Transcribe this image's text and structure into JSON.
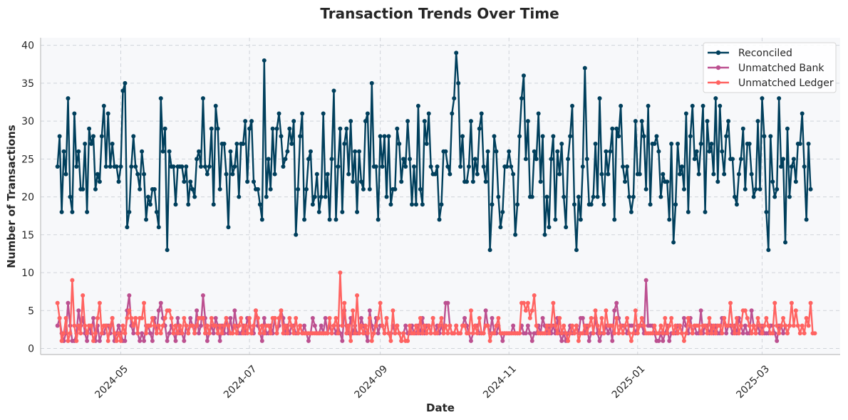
{
  "chart_data": {
    "type": "line",
    "title": "Transaction Trends Over Time",
    "xlabel": "Date",
    "ylabel": "Number of Transactions",
    "x_range": [
      "2024-03-24",
      "2025-04-07"
    ],
    "x_ticks": [
      {
        "date": "2024-05-01",
        "label": "2024-05"
      },
      {
        "date": "2024-07-01",
        "label": "2024-07"
      },
      {
        "date": "2024-09-01",
        "label": "2024-09"
      },
      {
        "date": "2024-11-01",
        "label": "2024-11"
      },
      {
        "date": "2025-01-01",
        "label": "2025-01"
      },
      {
        "date": "2025-03-01",
        "label": "2025-03"
      }
    ],
    "ylim": [
      -0.8,
      41
    ],
    "y_ticks": [
      0,
      5,
      10,
      15,
      20,
      25,
      30,
      35,
      40
    ],
    "grid": true,
    "legend_position": "top-right",
    "x_start": "2024-04-01",
    "x_end": "2025-03-31",
    "x_step": "1 day",
    "series": [
      {
        "name": "Reconciled",
        "color": "#003f5c",
        "values": [
          24,
          28,
          18,
          26,
          23,
          33,
          20,
          18,
          31,
          24,
          26,
          21,
          21,
          27,
          18,
          29,
          27,
          28,
          21,
          23,
          22,
          28,
          32,
          24,
          31,
          24,
          27,
          24,
          24,
          22,
          24,
          34,
          35,
          16,
          18,
          24,
          28,
          24,
          23,
          21,
          26,
          23,
          17,
          20,
          19,
          21,
          21,
          18,
          16,
          33,
          26,
          29,
          13,
          26,
          24,
          24,
          19,
          24,
          24,
          24,
          22,
          24,
          19,
          22,
          21,
          20,
          25,
          26,
          24,
          33,
          24,
          23,
          24,
          29,
          19,
          32,
          29,
          21,
          27,
          27,
          23,
          16,
          26,
          23,
          24,
          27,
          20,
          27,
          27,
          30,
          22,
          29,
          30,
          22,
          21,
          21,
          19,
          17,
          38,
          20,
          25,
          21,
          29,
          23,
          29,
          31,
          28,
          24,
          25,
          26,
          29,
          27,
          30,
          15,
          21,
          28,
          31,
          17,
          21,
          25,
          26,
          19,
          20,
          23,
          18,
          20,
          31,
          20,
          23,
          17,
          25,
          34,
          17,
          24,
          29,
          18,
          27,
          29,
          23,
          30,
          22,
          26,
          18,
          26,
          22,
          21,
          30,
          31,
          21,
          35,
          24,
          24,
          17,
          28,
          24,
          28,
          20,
          28,
          19,
          21,
          21,
          29,
          27,
          22,
          25,
          24,
          30,
          25,
          19,
          24,
          19,
          32,
          21,
          19,
          30,
          27,
          31,
          24,
          23,
          23,
          24,
          17,
          19,
          26,
          26,
          24,
          23,
          31,
          33,
          39,
          35,
          24,
          28,
          22,
          22,
          24,
          30,
          22,
          25,
          23,
          29,
          31,
          24,
          22,
          26,
          13,
          19,
          28,
          26,
          20,
          16,
          18,
          24,
          24,
          26,
          24,
          23,
          15,
          19,
          28,
          33,
          36,
          25,
          30,
          20,
          20,
          26,
          25,
          31,
          22,
          28,
          15,
          20,
          16,
          25,
          28,
          17,
          26,
          23,
          27,
          20,
          16,
          25,
          28,
          32,
          19,
          13,
          20,
          17,
          24,
          37,
          25,
          19,
          19,
          20,
          27,
          20,
          33,
          23,
          19,
          26,
          23,
          26,
          29,
          17,
          29,
          28,
          32,
          24,
          22,
          24,
          20,
          18,
          20,
          30,
          23,
          23,
          30,
          28,
          21,
          32,
          19,
          27,
          27,
          28,
          26,
          20,
          23,
          22,
          22,
          17,
          27,
          14,
          19,
          27,
          23,
          24,
          21,
          31,
          18,
          28,
          32,
          25,
          26,
          23,
          27,
          32,
          18,
          30,
          26,
          27,
          23,
          33,
          22,
          32,
          26,
          23,
          28,
          30,
          25,
          25,
          20,
          19,
          23,
          25,
          29,
          21,
          27,
          27,
          23,
          20,
          21,
          30,
          21,
          33,
          28,
          18,
          13,
          28,
          22,
          20,
          21,
          33,
          24,
          25,
          14,
          29,
          20,
          24,
          25,
          22,
          27,
          27,
          31,
          24,
          17,
          27,
          21
        ]
      },
      {
        "name": "Unmatched Bank",
        "color": "#bc5090",
        "values": [
          3,
          4,
          2,
          1,
          2,
          6,
          3,
          1,
          1,
          2,
          5,
          3,
          4,
          2,
          1,
          3,
          2,
          4,
          1,
          3,
          1,
          2,
          2,
          3,
          3,
          2,
          4,
          1,
          2,
          3,
          2,
          1,
          1,
          5,
          7,
          3,
          2,
          4,
          2,
          1,
          2,
          1,
          3,
          3,
          2,
          1,
          4,
          2,
          5,
          6,
          4,
          3,
          1,
          2,
          3,
          2,
          1,
          4,
          2,
          2,
          1,
          3,
          2,
          4,
          3,
          2,
          5,
          2,
          3,
          7,
          4,
          1,
          2,
          3,
          2,
          4,
          3,
          1,
          3,
          2,
          4,
          2,
          4,
          2,
          5,
          3,
          2,
          2,
          3,
          2,
          4,
          3,
          2,
          2,
          5,
          3,
          2,
          1,
          4,
          2,
          2,
          3,
          2,
          4,
          2,
          3,
          5,
          4,
          2,
          3,
          2,
          3,
          3,
          2,
          2,
          3,
          2,
          3,
          2,
          1,
          2,
          4,
          3,
          2,
          2,
          3,
          2,
          4,
          2,
          3,
          2,
          3,
          2,
          3,
          2,
          1,
          5,
          3,
          2,
          4,
          2,
          3,
          2,
          2,
          4,
          3,
          2,
          1,
          5,
          3,
          2,
          4,
          2,
          3,
          3,
          2,
          4,
          2,
          2,
          3,
          2,
          3,
          2,
          1,
          2,
          3,
          2,
          2,
          3,
          2,
          2,
          3,
          2,
          4,
          2,
          3,
          3,
          2,
          4,
          2,
          3,
          2,
          3,
          2,
          6,
          6,
          3,
          2,
          2,
          3,
          2,
          2,
          3,
          4,
          3,
          2,
          1,
          2,
          3,
          3,
          2,
          2,
          2,
          5,
          3,
          2,
          4,
          2,
          2,
          3,
          2,
          1,
          2,
          2,
          2,
          2,
          3,
          2,
          2,
          2,
          3,
          2,
          2,
          3,
          2,
          1,
          2,
          2,
          3,
          2,
          4,
          3,
          2,
          3,
          2,
          3,
          2,
          4,
          2,
          1,
          2,
          1,
          2,
          3,
          2,
          2,
          3,
          2,
          4,
          4,
          2,
          3,
          1,
          2,
          2,
          4,
          2,
          1,
          2,
          2,
          3,
          2,
          3,
          1,
          5,
          6,
          4,
          3,
          3,
          3,
          2,
          3,
          3,
          3,
          2,
          3,
          3,
          3,
          2,
          9,
          3,
          3,
          3,
          2,
          1,
          1,
          2,
          1,
          2,
          3,
          1,
          2,
          2,
          2,
          3,
          3,
          2,
          4,
          3,
          2,
          4,
          2,
          3,
          2,
          2,
          5,
          2,
          3,
          3,
          2,
          3,
          2,
          3,
          2,
          2,
          4,
          4,
          2,
          3,
          3,
          2,
          3,
          2,
          4,
          3,
          2,
          3,
          2,
          2,
          5,
          3,
          2,
          3,
          2,
          3,
          2,
          2,
          2,
          3,
          3,
          2,
          1,
          3,
          3,
          2,
          3,
          2,
          3
        ]
      },
      {
        "name": "Unmatched Ledger",
        "color": "#ff6361",
        "values": [
          6,
          4,
          1,
          2,
          4,
          1,
          2,
          9,
          3,
          1,
          3,
          2,
          7,
          3,
          2,
          3,
          3,
          1,
          2,
          4,
          6,
          2,
          3,
          3,
          1,
          3,
          4,
          2,
          1,
          2,
          1,
          3,
          2,
          4,
          5,
          4,
          3,
          4,
          2,
          4,
          4,
          6,
          2,
          3,
          3,
          4,
          3,
          2,
          3,
          2,
          3,
          4,
          5,
          5,
          4,
          2,
          3,
          2,
          3,
          2,
          4,
          3,
          2,
          3,
          3,
          2,
          3,
          4,
          4,
          4,
          2,
          3,
          2,
          4,
          3,
          3,
          2,
          3,
          2,
          3,
          4,
          3,
          2,
          2,
          3,
          2,
          3,
          4,
          2,
          3,
          2,
          4,
          2,
          3,
          5,
          4,
          2,
          3,
          2,
          3,
          3,
          2,
          4,
          4,
          2,
          4,
          5,
          2,
          3,
          2,
          4,
          3,
          2,
          4,
          2,
          3,
          2,
          2,
          2,
          2,
          2,
          2,
          2,
          2,
          2,
          2,
          2,
          2,
          2,
          4,
          2,
          3,
          4,
          2,
          10,
          3,
          6,
          2,
          3,
          1,
          5,
          2,
          7,
          2,
          3,
          2,
          3,
          2,
          4,
          1,
          2,
          3,
          4,
          6,
          3,
          2,
          4,
          2,
          1,
          5,
          2,
          3,
          2,
          1,
          2,
          1,
          1,
          3,
          2,
          2,
          3,
          2,
          4,
          2,
          3,
          2,
          3,
          2,
          4,
          2,
          2,
          3,
          4,
          2,
          3,
          2,
          3,
          2,
          2,
          3,
          2,
          2,
          3,
          3,
          2,
          2,
          5,
          2,
          3,
          2,
          4,
          2,
          2,
          3,
          3,
          1,
          2,
          2,
          3,
          4,
          2,
          2,
          2,
          2,
          2,
          2,
          2,
          2,
          2,
          2,
          6,
          6,
          5,
          6,
          4,
          5,
          7,
          3,
          2,
          2,
          2,
          2,
          3,
          2,
          3,
          6,
          3,
          2,
          4,
          2,
          3,
          2,
          1,
          2,
          3,
          2,
          3,
          1,
          2,
          2,
          3,
          2,
          3,
          4,
          2,
          5,
          3,
          2,
          4,
          2,
          5,
          3,
          3,
          3,
          2,
          4,
          2,
          3,
          2,
          3,
          4,
          2,
          1,
          2,
          5,
          2,
          3,
          4,
          3,
          2,
          2,
          2,
          2,
          3,
          2,
          2,
          3,
          2,
          4,
          2,
          3,
          4,
          2,
          3,
          2,
          3,
          2,
          1,
          2,
          4,
          3,
          2,
          3,
          3,
          3,
          2,
          3,
          3,
          2,
          4,
          2,
          3,
          2,
          3,
          3,
          2,
          4,
          3,
          3,
          6,
          3,
          2,
          4,
          2,
          3,
          5,
          5,
          4,
          3,
          2,
          3,
          2,
          4,
          3,
          2,
          3,
          4,
          3,
          2,
          2,
          6,
          3,
          2,
          3,
          4,
          3,
          2,
          3,
          6,
          3,
          5,
          3,
          2,
          3,
          2,
          4,
          3,
          6,
          2,
          2
        ]
      }
    ]
  }
}
